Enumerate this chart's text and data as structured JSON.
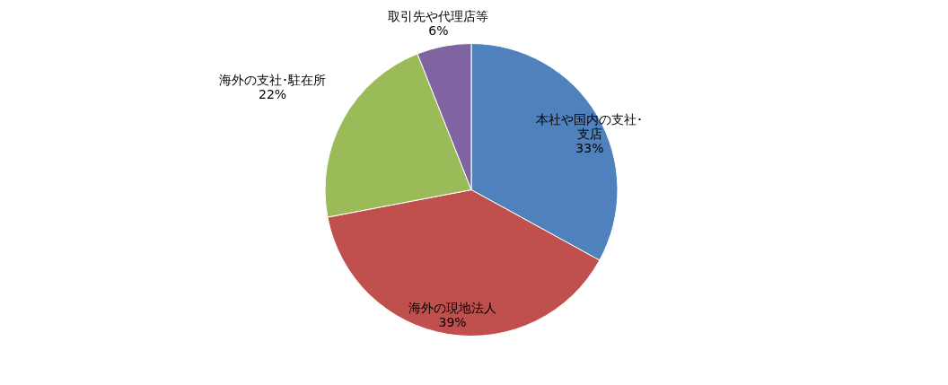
{
  "chart_data": {
    "type": "pie",
    "categories": [
      "本社や国内の支社･支店",
      "海外の現地法人",
      "海外の支社･駐在所",
      "取引先や代理店等"
    ],
    "values": [
      33,
      39,
      22,
      6
    ],
    "value_labels": [
      "33%",
      "39%",
      "22%",
      "6%"
    ],
    "colors": [
      "#4f81bd",
      "#c0504d",
      "#9bbb59",
      "#8064a2"
    ],
    "legend": false
  }
}
